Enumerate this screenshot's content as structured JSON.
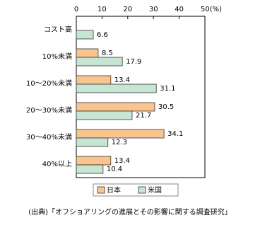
{
  "chart_data": {
    "type": "bar",
    "orientation": "horizontal",
    "categories": [
      "コスト高",
      "10%未満",
      "10～20%未満",
      "20～30%未満",
      "30～40%未満",
      "40%以上"
    ],
    "series": [
      {
        "name": "日本",
        "color": "#fac48e",
        "values": [
          null,
          8.5,
          13.4,
          30.5,
          34.1,
          13.4
        ]
      },
      {
        "name": "米国",
        "color": "#c6e5d2",
        "values": [
          6.6,
          17.9,
          31.1,
          21.7,
          12.3,
          10.4
        ]
      }
    ],
    "xlim": [
      0,
      50
    ],
    "xticks": [
      0,
      10,
      20,
      30,
      40,
      {
        "value": 50,
        "label": "50(%)"
      }
    ],
    "source": "(出典)「オフショアリングの進展とその影響に関する調査研究」"
  }
}
